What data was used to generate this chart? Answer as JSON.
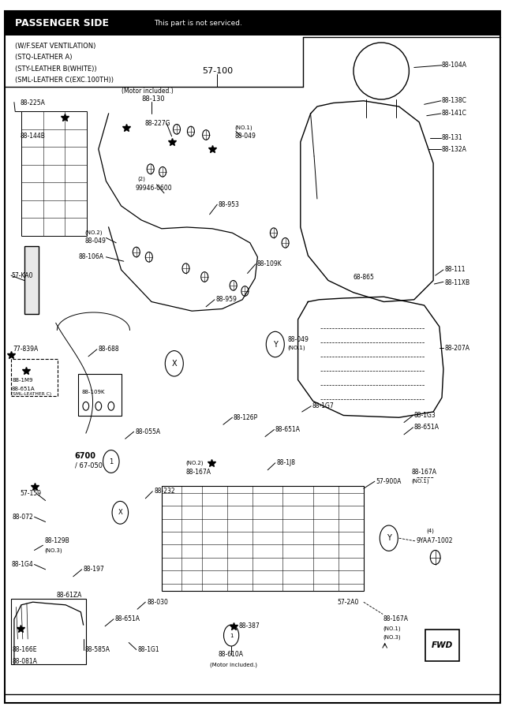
{
  "title": "PASSENGER SIDE",
  "title_star": true,
  "title_note": "This part is not serviced.",
  "subtitle_lines": [
    "(W/F.SEAT VENTILATION)",
    "(STQ-LEATHER A)",
    "(STY-LEATHER B(WHITE))",
    "(SML-LEATHER C(EXC.100TH))"
  ],
  "part_number_main": "57-100",
  "bg_color": "#ffffff",
  "border_color": "#000000",
  "line_color": "#000000",
  "text_color": "#000000"
}
